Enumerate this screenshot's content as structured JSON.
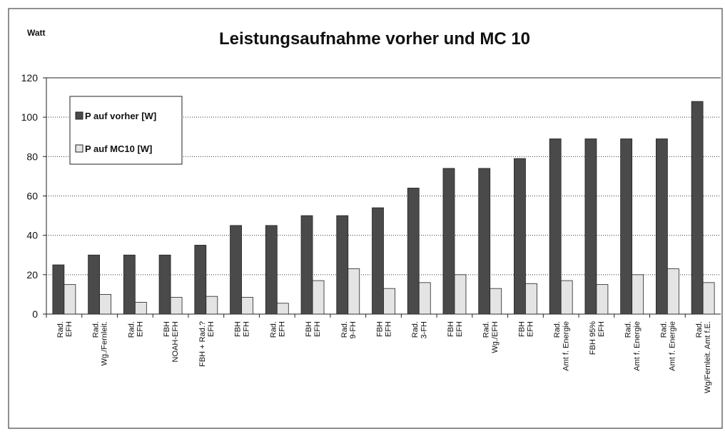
{
  "chart_data": {
    "type": "bar",
    "title": "Leistungsaufnahme vorher und MC 10",
    "y_label": "Watt",
    "categories": [
      "Rad.\nEFH",
      "Rad.\nWg./Fernleit.",
      "Rad.\nEFH",
      "FBH\nNOAH-EFH",
      "FBH + Rad.?\nEFH",
      "FBH\nEFH",
      "Rad.\nEFH",
      "FBH\nEFH",
      "Rad.\n9-FH",
      "FBH\nEFH",
      "Rad.\n3-FH",
      "FBH\nEFH",
      "Rad.\nWg./EFH",
      "FBH\nEFH",
      "Rad.\nAmt f. Energie",
      "FBH 95%\nEFH",
      "Rad.\nAmt f. Energie",
      "Rad.\nAmt f. Energie",
      "Rad.\nWg/Fernleit. Amt f.E."
    ],
    "series": [
      {
        "name": "P auf vorher [W]",
        "color": "#4a4a4a",
        "values": [
          25,
          30,
          30,
          30,
          35,
          45,
          45,
          50,
          50,
          54,
          64,
          74,
          74,
          79,
          89,
          89,
          89,
          89,
          108
        ]
      },
      {
        "name": "P auf MC10 [W]",
        "color": "#e4e4e4",
        "values": [
          15,
          10,
          6,
          8.5,
          9,
          8.5,
          5.5,
          17,
          23,
          13,
          16,
          20,
          13,
          15.5,
          17,
          15,
          20,
          23,
          16
        ]
      }
    ],
    "ylim": [
      0,
      120
    ],
    "yticks": [
      0,
      20,
      40,
      60,
      80,
      100,
      120
    ],
    "grid": true,
    "legend": "upper left"
  }
}
